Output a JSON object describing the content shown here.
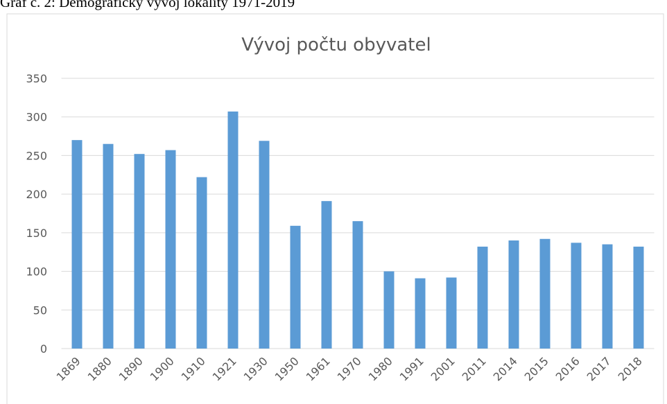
{
  "caption": "Graf č. 2: Demografický vývoj lokality 1971-2019",
  "chart_data": {
    "type": "bar",
    "title": "Vývoj počtu obyvatel",
    "categories": [
      "1869",
      "1880",
      "1890",
      "1900",
      "1910",
      "1921",
      "1930",
      "1950",
      "1961",
      "1970",
      "1980",
      "1991",
      "2001",
      "2011",
      "2014",
      "2015",
      "2016",
      "2017",
      "2018"
    ],
    "values": [
      270,
      265,
      252,
      257,
      222,
      307,
      269,
      159,
      191,
      165,
      100,
      91,
      92,
      132,
      140,
      142,
      137,
      135,
      132
    ],
    "color": "#5b9bd5",
    "ylim": [
      0,
      350
    ],
    "yticks": [
      0,
      50,
      100,
      150,
      200,
      250,
      300,
      350
    ],
    "grid": true
  }
}
